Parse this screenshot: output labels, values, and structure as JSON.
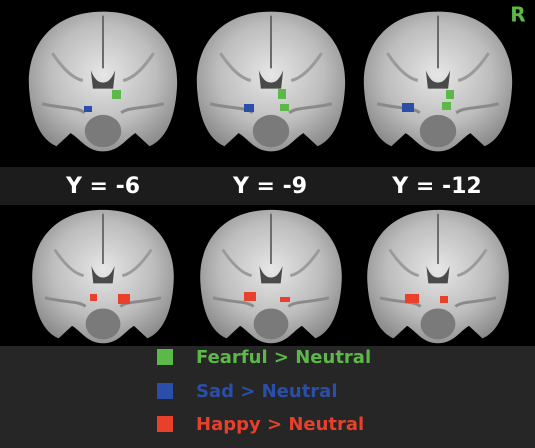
{
  "corner_label": "R",
  "slices": [
    {
      "label": "Y = -6"
    },
    {
      "label": "Y = -9"
    },
    {
      "label": "Y = -12"
    }
  ],
  "legend": [
    {
      "label": "Fearful > Neutral"
    },
    {
      "label": "Sad > Neutral"
    },
    {
      "label": "Happy > Neutral"
    }
  ]
}
